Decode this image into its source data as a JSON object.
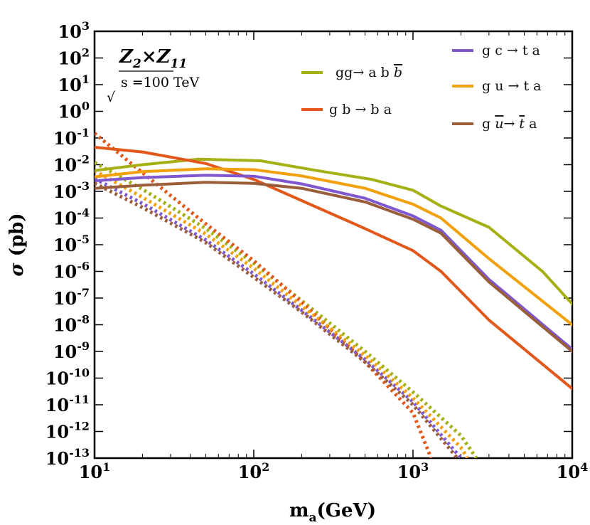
{
  "chart_data": {
    "type": "line",
    "x_scale": "log",
    "y_scale": "log",
    "xlim": [
      10,
      10000
    ],
    "ylim": [
      1e-13,
      1000
    ],
    "xlabel_main": "m",
    "xlabel_sub": "a",
    "xlabel_unit": "(GeV)",
    "ylabel_symbol": "σ",
    "ylabel_unit": "(pb)",
    "x_ticks": [
      {
        "value": 10,
        "exp": "1"
      },
      {
        "value": 100,
        "exp": "2"
      },
      {
        "value": 1000,
        "exp": "3"
      },
      {
        "value": 10000,
        "exp": "4"
      }
    ],
    "y_ticks": [
      {
        "value": 1000,
        "exp": "3"
      },
      {
        "value": 100,
        "exp": "2"
      },
      {
        "value": 10,
        "exp": "1"
      },
      {
        "value": 1,
        "exp": "0"
      },
      {
        "value": 0.1,
        "exp": "-1"
      },
      {
        "value": 0.01,
        "exp": "-2"
      },
      {
        "value": 0.001,
        "exp": "-3"
      },
      {
        "value": 0.0001,
        "exp": "-4"
      },
      {
        "value": 1e-05,
        "exp": "-5"
      },
      {
        "value": 1e-06,
        "exp": "-6"
      },
      {
        "value": 1e-07,
        "exp": "-7"
      },
      {
        "value": 1e-08,
        "exp": "-8"
      },
      {
        "value": 1e-09,
        "exp": "-9"
      },
      {
        "value": 1e-10,
        "exp": "-10"
      },
      {
        "value": 1e-11,
        "exp": "-11"
      },
      {
        "value": 1e-12,
        "exp": "-12"
      },
      {
        "value": 1e-13,
        "exp": "-13"
      }
    ],
    "tick_base": "10",
    "grid": false,
    "model_label": {
      "a": "Z",
      "a_sub": "2",
      "times": "×",
      "b": "Z",
      "b_sub": "11"
    },
    "energy_label": {
      "root": "√",
      "text": "s =100 TeV"
    },
    "series": [
      {
        "name": "gg→ a b b̄",
        "color": "#a5b014",
        "solid": [
          [
            10,
            0.006
          ],
          [
            20,
            0.01
          ],
          [
            45,
            0.016
          ],
          [
            110,
            0.014
          ],
          [
            250,
            0.006
          ],
          [
            550,
            0.0028
          ],
          [
            1000,
            0.0011
          ],
          [
            1500,
            0.00028
          ],
          [
            3000,
            4.5e-05
          ],
          [
            6500,
            1e-06
          ],
          [
            10000,
            6e-08
          ]
        ],
        "dotted": [
          [
            10,
            0.012
          ],
          [
            20,
            0.0012
          ],
          [
            50,
            4e-05
          ],
          [
            100,
            2e-06
          ],
          [
            200,
            8e-08
          ],
          [
            500,
            1e-09
          ],
          [
            1000,
            3e-11
          ],
          [
            2000,
            7e-13
          ],
          [
            2500,
            1e-13
          ]
        ]
      },
      {
        "name": "g b → b a",
        "color": "#e2571a",
        "solid": [
          [
            10,
            0.045
          ],
          [
            20,
            0.03
          ],
          [
            50,
            0.011
          ],
          [
            100,
            0.0028
          ],
          [
            200,
            0.00045
          ],
          [
            500,
            4e-05
          ],
          [
            1000,
            6e-06
          ],
          [
            1500,
            1e-06
          ],
          [
            3000,
            1.5e-08
          ],
          [
            10000,
            4e-11
          ]
        ],
        "dotted": [
          [
            10,
            0.15
          ],
          [
            20,
            0.005
          ],
          [
            50,
            6e-05
          ],
          [
            100,
            2.5e-06
          ],
          [
            200,
            7e-08
          ],
          [
            500,
            4e-10
          ],
          [
            1000,
            5e-12
          ],
          [
            1300,
            1e-13
          ]
        ]
      },
      {
        "name": "g c → t a",
        "color": "#7f58cf",
        "solid": [
          [
            10,
            0.0025
          ],
          [
            20,
            0.0033
          ],
          [
            50,
            0.004
          ],
          [
            100,
            0.0037
          ],
          [
            200,
            0.0019
          ],
          [
            500,
            0.00055
          ],
          [
            1000,
            0.00012
          ],
          [
            1500,
            3.5e-05
          ],
          [
            3000,
            5e-07
          ],
          [
            10000,
            1.2e-09
          ]
        ],
        "dotted": [
          [
            10,
            0.003
          ],
          [
            20,
            0.00035
          ],
          [
            50,
            1.5e-05
          ],
          [
            100,
            8e-07
          ],
          [
            200,
            3.5e-08
          ],
          [
            500,
            5e-10
          ],
          [
            1000,
            1.3e-11
          ],
          [
            2000,
            1e-13
          ]
        ]
      },
      {
        "name": "g u → t a",
        "color": "#f2a00c",
        "solid": [
          [
            10,
            0.0035
          ],
          [
            20,
            0.0055
          ],
          [
            50,
            0.007
          ],
          [
            100,
            0.0065
          ],
          [
            200,
            0.0038
          ],
          [
            500,
            0.0013
          ],
          [
            1000,
            0.00033
          ],
          [
            1500,
            0.0001
          ],
          [
            3000,
            3e-06
          ],
          [
            10000,
            1e-08
          ]
        ],
        "dotted": [
          [
            10,
            0.006
          ],
          [
            20,
            0.0006
          ],
          [
            50,
            2.5e-05
          ],
          [
            100,
            1.3e-06
          ],
          [
            200,
            5e-08
          ],
          [
            500,
            7e-10
          ],
          [
            1000,
            1.8e-11
          ],
          [
            2000,
            2.5e-13
          ],
          [
            2200,
            1e-13
          ]
        ]
      },
      {
        "name": "g ū→ t̄ a",
        "color": "#9a5f3a",
        "solid": [
          [
            10,
            0.0013
          ],
          [
            20,
            0.0017
          ],
          [
            50,
            0.0022
          ],
          [
            100,
            0.002
          ],
          [
            200,
            0.0013
          ],
          [
            500,
            0.0004
          ],
          [
            1000,
            9e-05
          ],
          [
            1500,
            2.7e-05
          ],
          [
            3000,
            4e-07
          ],
          [
            10000,
            1e-09
          ]
        ],
        "dotted": [
          [
            10,
            0.002
          ],
          [
            20,
            0.00025
          ],
          [
            50,
            1.2e-05
          ],
          [
            100,
            6e-07
          ],
          [
            200,
            3e-08
          ],
          [
            500,
            4e-10
          ],
          [
            1000,
            1e-11
          ],
          [
            1900,
            1e-13
          ]
        ]
      }
    ],
    "legend": [
      {
        "series": 0,
        "label": "gg→ a b",
        "overline_part": "b",
        "italic_overline": true
      },
      {
        "series": 1,
        "label": "g b → b a"
      },
      {
        "series": 2,
        "label": "g c → t a"
      },
      {
        "series": 3,
        "label": "g u → t a"
      },
      {
        "series": 4,
        "label_parts": [
          "g ",
          "u",
          "→ ",
          "t",
          " a"
        ],
        "overline_idx": [
          1,
          3
        ]
      }
    ]
  }
}
